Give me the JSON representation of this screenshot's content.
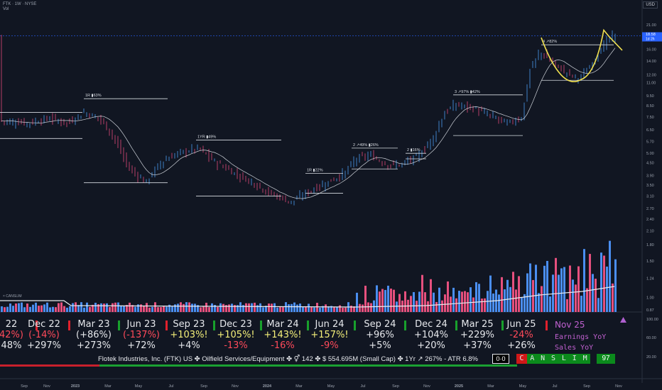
{
  "header": {
    "symbol_line": "FTK · 1W · NYSE",
    "vol_label": "Vol",
    "currency_button": "USD"
  },
  "canslim_label": "× CANSLIM",
  "price_tag": {
    "price": "18.58",
    "countdown": "1d 2h"
  },
  "chart_data": {
    "type": "candlestick",
    "y_scale": "log",
    "yticks": [
      "21.00",
      "18.00",
      "16.00",
      "14.00",
      "12.00",
      "11.00",
      "9.50",
      "8.50",
      "7.50",
      "6.50",
      "5.70",
      "5.00",
      "4.50",
      "3.90",
      "3.50",
      "3.10",
      "2.70",
      "2.40",
      "2.10",
      "1.80",
      "1.50",
      "1.24",
      "1.00",
      "0.87"
    ],
    "lower_ticks": [
      "100.00",
      "60.00",
      "20.00"
    ],
    "xticks": [
      "Sep",
      "Nov",
      "2023",
      "Mar",
      "May",
      "Jul",
      "Sep",
      "Nov",
      "2024",
      "Mar",
      "May",
      "Jul",
      "Sep",
      "Nov",
      "2025",
      "Mar",
      "May",
      "Jul",
      "Sep",
      "Nov"
    ],
    "bases": [
      {
        "label": "1R ▮63%"
      },
      {
        "label": "1YR ▮49%"
      },
      {
        "label": "1R ▮22%"
      },
      {
        "label": "2 ↗49% ▮26%"
      },
      {
        "label": "2 ▮16%"
      },
      {
        "label": "3 ↗97% ▮42%"
      },
      {
        "label": "4 ↗82%"
      }
    ]
  },
  "fundamentals": [
    {
      "quarter": "22",
      "eps": "42%)",
      "eps_color": "#ff4a5a",
      "sales": "48%",
      "sales_color": "#e6e8ec"
    },
    {
      "quarter": "Dec 22",
      "eps": "(-14%)",
      "eps_color": "#ff4a5a",
      "sales": "+297%",
      "sales_color": "#e6e8ec"
    },
    {
      "quarter": "Mar 23",
      "eps": "(+86%)",
      "eps_color": "#e6e8ec",
      "sales": "+273%",
      "sales_color": "#e6e8ec"
    },
    {
      "quarter": "Jun 23",
      "eps": "(-137%)",
      "eps_color": "#ff4a5a",
      "sales": "+72%",
      "sales_color": "#e6e8ec"
    },
    {
      "quarter": "Sep 23",
      "eps": "+103%!",
      "eps_color": "#f5f07a",
      "sales": "+4%",
      "sales_color": "#e6e8ec"
    },
    {
      "quarter": "Dec 23",
      "eps": "+105%!",
      "eps_color": "#f5f07a",
      "sales": "-13%",
      "sales_color": "#ff4a5a"
    },
    {
      "quarter": "Mar 24",
      "eps": "+143%!",
      "eps_color": "#f5f07a",
      "sales": "-16%",
      "sales_color": "#ff4a5a"
    },
    {
      "quarter": "Jun 24",
      "eps": "+157%!",
      "eps_color": "#f5f07a",
      "sales": "-9%",
      "sales_color": "#ff4a5a"
    },
    {
      "quarter": "Sep 24",
      "eps": "+96%",
      "eps_color": "#e6e8ec",
      "sales": "+5%",
      "sales_color": "#e6e8ec"
    },
    {
      "quarter": "Dec 24",
      "eps": "+104%",
      "eps_color": "#e6e8ec",
      "sales": "+20%",
      "sales_color": "#e6e8ec"
    },
    {
      "quarter": "Mar 25",
      "eps": "+229%",
      "eps_color": "#e6e8ec",
      "sales": "+37%",
      "sales_color": "#e6e8ec"
    },
    {
      "quarter": "Jun 25",
      "eps": "-24%",
      "eps_color": "#ff4a5a",
      "sales": "+26%",
      "sales_color": "#e6e8ec"
    }
  ],
  "next_quarter": "Nov 25",
  "legend": {
    "eps": "Earnings YoY",
    "sales": "Sales YoY"
  },
  "info_line": "Flotek Industries, Inc. (FTK) US ✤ Oilfield Services/Equipment ✤ ⚥ 142  ✤  $ 554.695M (Small Cap) ✤ 1Yr ↗ 267% - ATR 6.8%",
  "status_box": "0·0",
  "canslim": [
    "C",
    "A",
    "N",
    "S",
    "L",
    "I",
    "M"
  ],
  "score": "97"
}
